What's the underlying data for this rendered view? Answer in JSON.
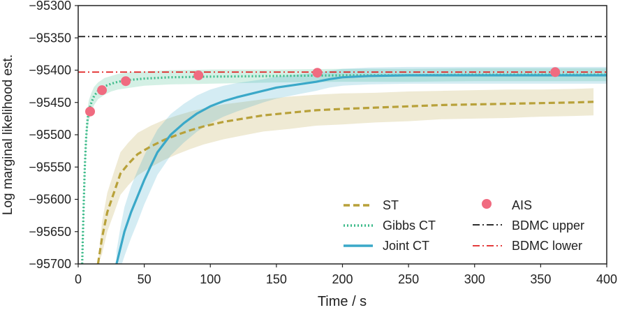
{
  "chart_data": {
    "type": "line",
    "xlabel": "Time / s",
    "ylabel": "Log marginal likelihood est.",
    "xlim": [
      0,
      400
    ],
    "ylim": [
      -95700,
      -95300
    ],
    "xticks": [
      0,
      50,
      100,
      150,
      200,
      250,
      300,
      350,
      400
    ],
    "yticks": [
      -95300,
      -95350,
      -95400,
      -95450,
      -95500,
      -95550,
      -95600,
      -95650,
      -95700
    ],
    "xtick_labels": [
      "0",
      "50",
      "100",
      "150",
      "200",
      "250",
      "300",
      "350",
      "400"
    ],
    "ytick_labels": [
      "−95300",
      "−95350",
      "−95400",
      "−95450",
      "−95500",
      "−95550",
      "−95600",
      "−95650",
      "−95700"
    ],
    "series": [
      {
        "name": "ST",
        "style": "dashed",
        "color": "#b8a13a",
        "x": [
          15,
          18,
          22,
          27,
          32,
          38,
          45,
          55,
          65,
          75,
          85,
          95,
          110,
          125,
          140,
          160,
          180,
          200,
          225,
          250,
          275,
          300,
          325,
          350,
          375,
          390
        ],
        "y": [
          -95700,
          -95660,
          -95620,
          -95590,
          -95560,
          -95545,
          -95530,
          -95518,
          -95508,
          -95500,
          -95493,
          -95487,
          -95480,
          -95475,
          -95470,
          -95466,
          -95462,
          -95460,
          -95458,
          -95456,
          -95454,
          -95453,
          -95452,
          -95451,
          -95450,
          -95449
        ],
        "band_width": [
          0,
          25,
          30,
          32,
          33,
          33,
          33,
          32,
          31,
          30,
          29,
          28,
          27,
          26,
          25,
          25,
          24,
          24,
          23,
          23,
          22,
          22,
          22,
          21,
          21,
          21
        ]
      },
      {
        "name": "Gibbs CT",
        "style": "dotted",
        "color": "#3dbb8a",
        "x": [
          3,
          4,
          5,
          6,
          7,
          8,
          10,
          12,
          15,
          20,
          25,
          30,
          40,
          50,
          70,
          100,
          150,
          200,
          250,
          300,
          350,
          400
        ],
        "y": [
          -95700,
          -95620,
          -95550,
          -95505,
          -95478,
          -95463,
          -95450,
          -95440,
          -95432,
          -95425,
          -95421,
          -95418,
          -95415,
          -95413,
          -95411,
          -95410,
          -95409,
          -95408,
          -95408,
          -95407,
          -95407,
          -95407
        ],
        "band_width": [
          20,
          25,
          20,
          18,
          17,
          16,
          15,
          14,
          13,
          13,
          12,
          12,
          12,
          11,
          11,
          11,
          10,
          10,
          10,
          10,
          10,
          10
        ]
      },
      {
        "name": "Joint CT",
        "style": "solid",
        "color": "#3aa8c8",
        "x": [
          29,
          32,
          35,
          40,
          45,
          50,
          55,
          60,
          70,
          80,
          90,
          100,
          110,
          120,
          130,
          140,
          150,
          160,
          170,
          180,
          190,
          200,
          220,
          250,
          300,
          350,
          400
        ],
        "y": [
          -95700,
          -95675,
          -95650,
          -95620,
          -95595,
          -95570,
          -95548,
          -95527,
          -95500,
          -95482,
          -95467,
          -95456,
          -95448,
          -95442,
          -95437,
          -95432,
          -95427,
          -95424,
          -95421,
          -95418,
          -95414,
          -95411,
          -95409,
          -95408,
          -95408,
          -95408,
          -95408
        ],
        "band_width": [
          20,
          32,
          38,
          40,
          40,
          38,
          37,
          35,
          32,
          30,
          28,
          26,
          24,
          22,
          20,
          18,
          17,
          16,
          15,
          14,
          13,
          13,
          13,
          13,
          13,
          13,
          13
        ]
      }
    ],
    "ais": {
      "name": "AIS",
      "color": "#f06b80",
      "x": [
        9,
        18,
        36,
        91,
        181,
        361
      ],
      "y": [
        -95464,
        -95431,
        -95417,
        -95408,
        -95404,
        -95403
      ],
      "yerr": [
        6,
        3,
        2,
        2,
        2,
        2
      ]
    },
    "hlines": [
      {
        "name": "BDMC upper",
        "y": -95348,
        "color": "#111111",
        "style": "dashdot"
      },
      {
        "name": "BDMC lower",
        "y": -95403,
        "color": "#e02020",
        "style": "dashdot"
      }
    ],
    "legend": {
      "position": "lower-right",
      "entries": [
        "ST",
        "Gibbs CT",
        "Joint CT",
        "AIS",
        "BDMC upper",
        "BDMC lower"
      ]
    }
  }
}
